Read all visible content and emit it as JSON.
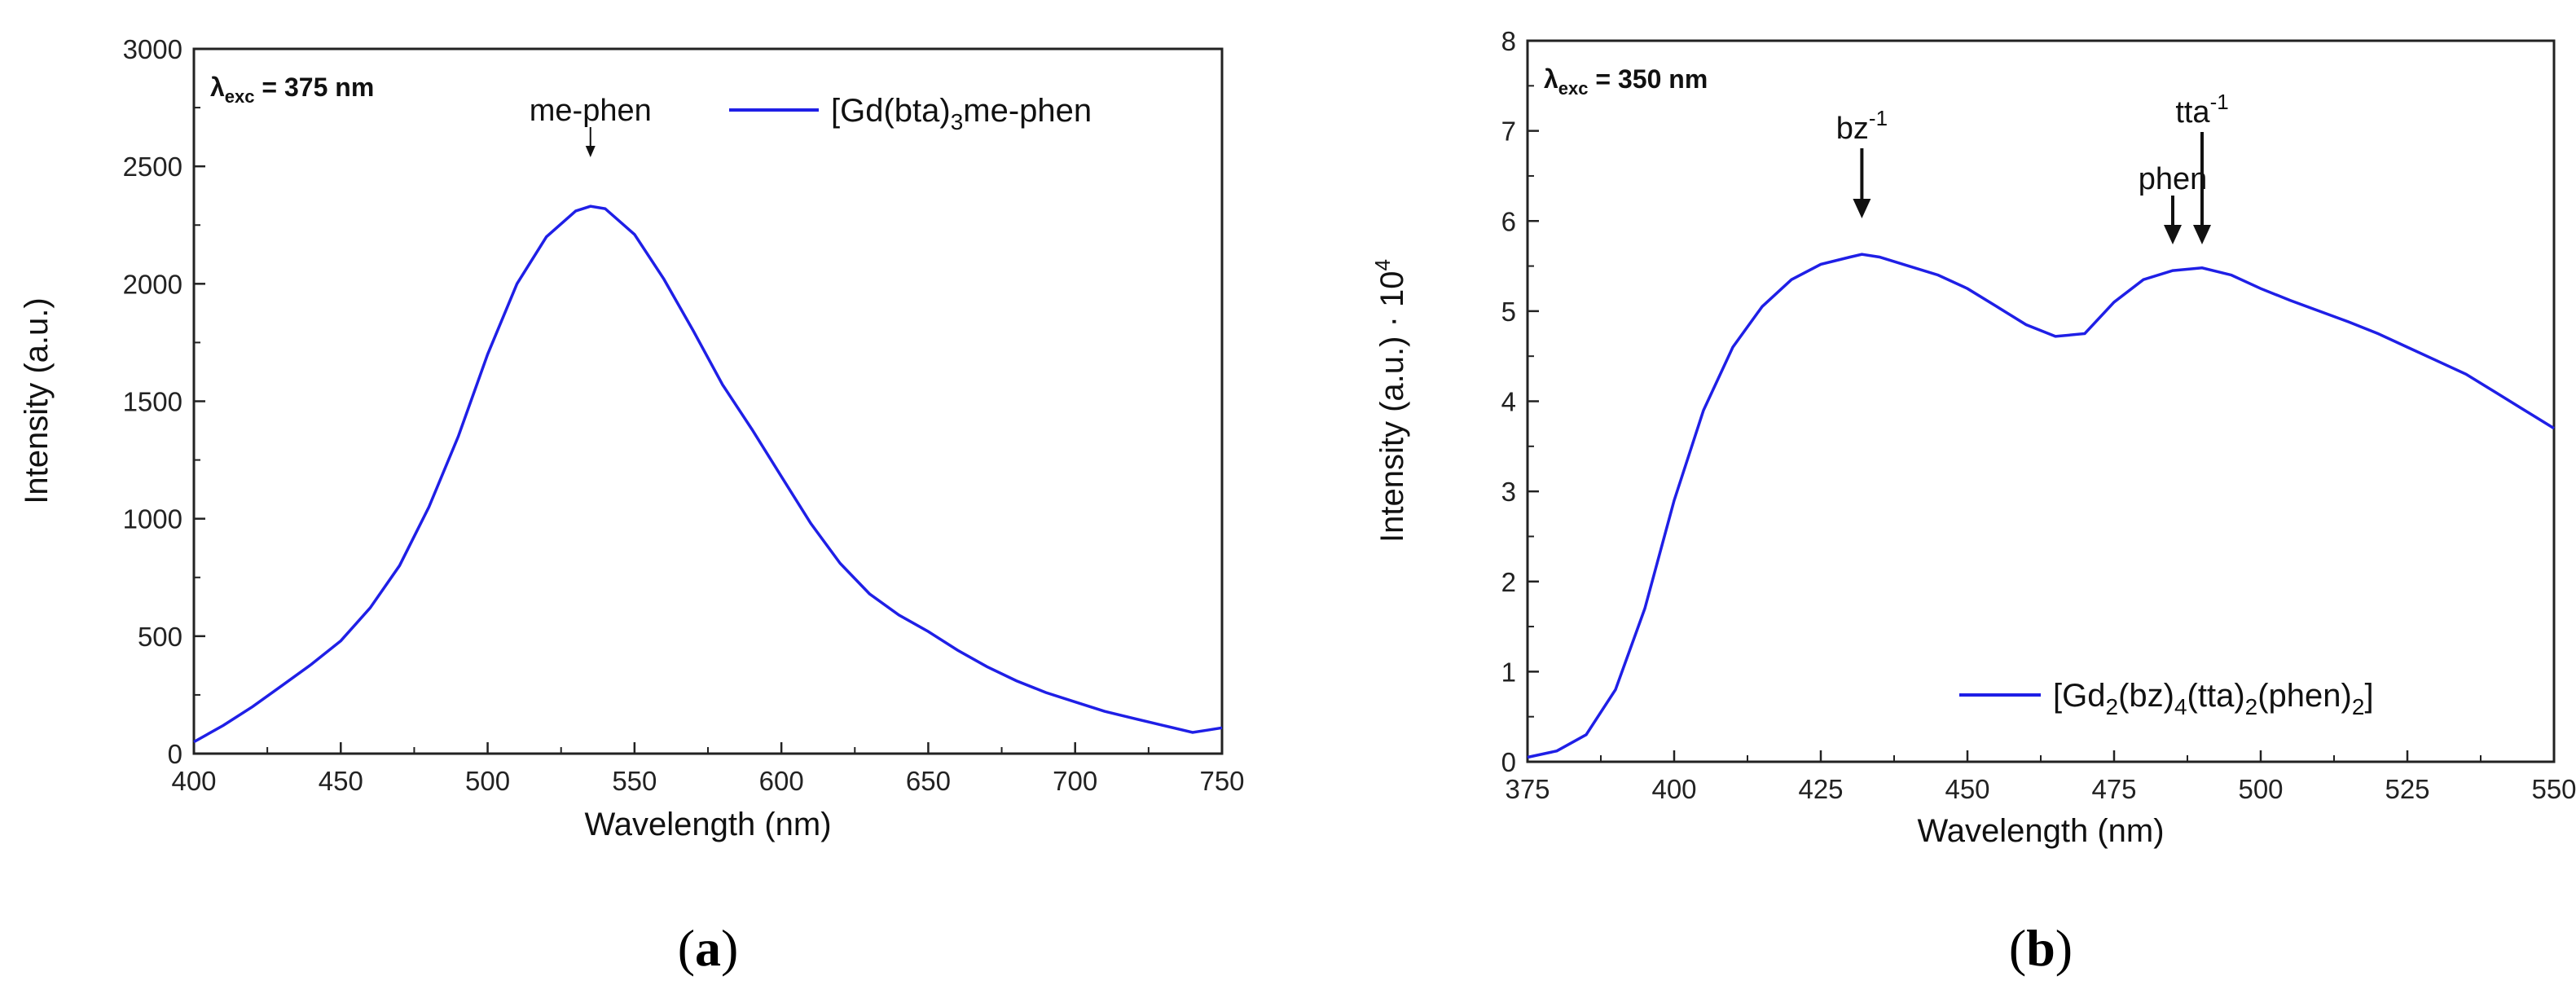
{
  "chart_data": [
    {
      "type": "line",
      "panel_label": "a",
      "xlabel": "Wavelength (nm)",
      "ylabel": "Intensity (a.u.)",
      "xlim": [
        400,
        750
      ],
      "ylim": [
        0,
        3000
      ],
      "xticks": [
        400,
        450,
        500,
        550,
        600,
        650,
        700,
        750
      ],
      "yticks": [
        0,
        500,
        1000,
        1500,
        2000,
        2500,
        3000
      ],
      "excitation": {
        "symbol": "λ",
        "sub": "exc",
        "value": " = 375 nm"
      },
      "series": [
        {
          "name": "[Gd(bta)3me-phen]",
          "legend_parts": [
            "[Gd(bta)",
            "3",
            "me-phen"
          ],
          "color": "#1f1fe6",
          "x": [
            400,
            410,
            420,
            430,
            440,
            450,
            460,
            470,
            480,
            490,
            500,
            510,
            520,
            530,
            535,
            540,
            550,
            560,
            570,
            580,
            590,
            600,
            610,
            620,
            630,
            640,
            650,
            660,
            670,
            680,
            690,
            700,
            710,
            720,
            730,
            740,
            745,
            750
          ],
          "y": [
            50,
            120,
            200,
            290,
            380,
            480,
            620,
            800,
            1050,
            1350,
            1700,
            2000,
            2200,
            2310,
            2330,
            2320,
            2210,
            2020,
            1800,
            1570,
            1380,
            1180,
            980,
            810,
            680,
            590,
            520,
            440,
            370,
            310,
            260,
            220,
            180,
            150,
            120,
            90,
            100,
            110
          ]
        }
      ],
      "annotations": [
        {
          "text": "me-phen",
          "x": 535
        }
      ]
    },
    {
      "type": "line",
      "panel_label": "b",
      "xlabel": "Wavelength (nm)",
      "ylabel": "Intensity (a.u.) · 10",
      "ylabel_sup": "4",
      "xlim": [
        375,
        550
      ],
      "ylim": [
        0,
        8
      ],
      "xticks": [
        375,
        400,
        425,
        450,
        475,
        500,
        525,
        550
      ],
      "yticks": [
        0,
        1,
        2,
        3,
        4,
        5,
        6,
        7,
        8
      ],
      "excitation": {
        "symbol": "λ",
        "sub": "exc",
        "value": " = 350 nm"
      },
      "series": [
        {
          "name": "[Gd2(bz)4(tta)2(phen)2]",
          "legend_parts": [
            "[Gd",
            "2",
            "(bz)",
            "4",
            "(tta)",
            "2",
            "(phen)",
            "2",
            "]"
          ],
          "color": "#1f1fe6",
          "x": [
            375,
            380,
            385,
            390,
            395,
            400,
            405,
            410,
            415,
            420,
            425,
            430,
            432,
            435,
            440,
            445,
            450,
            455,
            460,
            465,
            470,
            475,
            480,
            485,
            490,
            495,
            500,
            505,
            510,
            515,
            520,
            525,
            530,
            535,
            540,
            545,
            550
          ],
          "y": [
            0.05,
            0.12,
            0.3,
            0.8,
            1.7,
            2.9,
            3.9,
            4.6,
            5.05,
            5.35,
            5.52,
            5.6,
            5.63,
            5.6,
            5.5,
            5.4,
            5.25,
            5.05,
            4.85,
            4.72,
            4.75,
            5.1,
            5.35,
            5.45,
            5.48,
            5.4,
            5.25,
            5.12,
            5.0,
            4.88,
            4.75,
            4.6,
            4.45,
            4.3,
            4.1,
            3.9,
            3.7
          ]
        }
      ],
      "annotations": [
        {
          "text": "bz",
          "sup": "-1",
          "x": 432
        },
        {
          "text": "phen",
          "x": 485
        },
        {
          "text": "tta",
          "sup": "-1",
          "x": 490
        }
      ]
    }
  ]
}
